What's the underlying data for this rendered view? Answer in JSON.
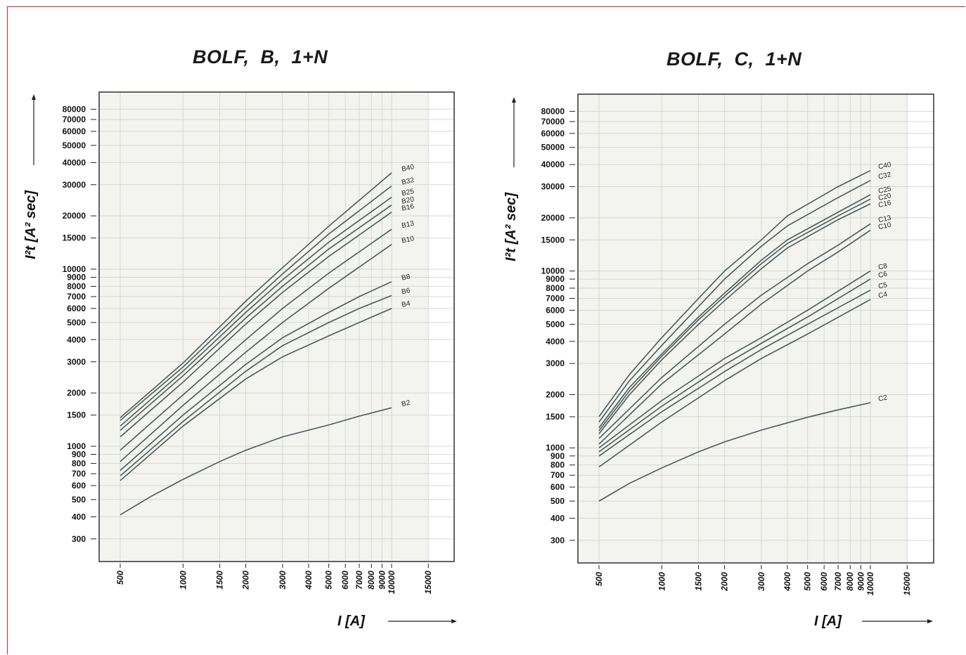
{
  "chart_data": [
    {
      "type": "line",
      "title": "BOLF,  B,  1+N",
      "xlabel": "I [A]",
      "ylabel": "I²t [A² sec]",
      "xscale": "log",
      "yscale": "log",
      "xlim": [
        420,
        17000
      ],
      "ylim": [
        215,
        130000
      ],
      "grid": true,
      "x_ticks": [
        500,
        1000,
        1500,
        2000,
        3000,
        4000,
        5000,
        6000,
        7000,
        8000,
        9000,
        10000,
        15000
      ],
      "x_tick_labels": [
        "500",
        "1000",
        "1500",
        "2000",
        "3000",
        "4000",
        "5000",
        "6000",
        "7000",
        "8000",
        "9000",
        "10000",
        "15000"
      ],
      "y_ticks": [
        300,
        400,
        500,
        600,
        700,
        800,
        900,
        1000,
        1500,
        2000,
        3000,
        4000,
        5000,
        6000,
        7000,
        8000,
        9000,
        10000,
        15000,
        20000,
        30000,
        40000,
        50000,
        60000,
        70000,
        80000
      ],
      "y_tick_labels": [
        "300",
        "400",
        "500",
        "600",
        "700",
        "800",
        "900",
        "1000",
        "1500",
        "2000",
        "3000",
        "4000",
        "5000",
        "6000",
        "7000",
        "8000",
        "9000",
        "10000",
        "15000",
        "20000",
        "30000",
        "40000",
        "50000",
        "60000",
        "70000",
        "80000"
      ],
      "series": [
        {
          "name": "B40",
          "x": [
            500,
            1000,
            2000,
            3000,
            5000,
            10000
          ],
          "y": [
            1450,
            2950,
            6600,
            10200,
            17500,
            35000
          ]
        },
        {
          "name": "B32",
          "x": [
            500,
            1000,
            2000,
            3000,
            5000,
            10000
          ],
          "y": [
            1400,
            2800,
            6100,
            9400,
            15800,
            29500
          ]
        },
        {
          "name": "B25",
          "x": [
            500,
            1000,
            2000,
            3000,
            5000,
            10000
          ],
          "y": [
            1300,
            2650,
            5700,
            8700,
            14200,
            25500
          ]
        },
        {
          "name": "B20",
          "x": [
            500,
            1000,
            2000,
            3000,
            5000,
            10000
          ],
          "y": [
            1230,
            2500,
            5300,
            8000,
            13000,
            23000
          ]
        },
        {
          "name": "B16",
          "x": [
            500,
            1000,
            2000,
            3000,
            5000,
            10000
          ],
          "y": [
            1130,
            2300,
            4900,
            7400,
            11800,
            21000
          ]
        },
        {
          "name": "B13",
          "x": [
            500,
            1000,
            2000,
            3000,
            5000,
            10000
          ],
          "y": [
            950,
            1950,
            4000,
            6000,
            9500,
            16800
          ]
        },
        {
          "name": "B10",
          "x": [
            500,
            1000,
            2000,
            3000,
            5000,
            10000
          ],
          "y": [
            820,
            1700,
            3400,
            5000,
            7800,
            13800
          ]
        },
        {
          "name": "B8",
          "x": [
            500,
            1000,
            2000,
            3000,
            5000,
            7000,
            10000
          ],
          "y": [
            730,
            1500,
            2900,
            4100,
            5700,
            7000,
            8500
          ]
        },
        {
          "name": "B6",
          "x": [
            500,
            1000,
            2000,
            3000,
            5000,
            7000,
            10000
          ],
          "y": [
            680,
            1380,
            2650,
            3700,
            5000,
            6000,
            7100
          ]
        },
        {
          "name": "B4",
          "x": [
            500,
            1000,
            2000,
            3000,
            5000,
            7000,
            10000
          ],
          "y": [
            640,
            1300,
            2400,
            3200,
            4200,
            5000,
            6000
          ]
        },
        {
          "name": "B2",
          "x": [
            500,
            700,
            1000,
            1500,
            2000,
            3000,
            5000,
            7000,
            10000
          ],
          "y": [
            410,
            520,
            650,
            820,
            950,
            1130,
            1320,
            1480,
            1650
          ]
        }
      ]
    },
    {
      "type": "line",
      "title": "BOLF,  C,  1+N",
      "xlabel": "I [A]",
      "ylabel": "I²t [A² sec]",
      "xscale": "log",
      "yscale": "log",
      "xlim": [
        420,
        17000
      ],
      "ylim": [
        215,
        130000
      ],
      "grid": true,
      "x_ticks": [
        500,
        1000,
        1500,
        2000,
        3000,
        4000,
        5000,
        6000,
        7000,
        8000,
        9000,
        10000,
        15000
      ],
      "x_tick_labels": [
        "500",
        "1000",
        "1500",
        "2000",
        "3000",
        "4000",
        "5000",
        "6000",
        "7000",
        "8000",
        "9000",
        "10000",
        "15000"
      ],
      "y_ticks": [
        300,
        400,
        500,
        600,
        700,
        800,
        900,
        1000,
        1500,
        2000,
        3000,
        4000,
        5000,
        6000,
        7000,
        8000,
        9000,
        10000,
        15000,
        20000,
        30000,
        40000,
        50000,
        60000,
        70000,
        80000
      ],
      "y_tick_labels": [
        "300",
        "400",
        "500",
        "600",
        "700",
        "800",
        "900",
        "1000",
        "1500",
        "2000",
        "3000",
        "4000",
        "5000",
        "6000",
        "7000",
        "8000",
        "9000",
        "10000",
        "15000",
        "20000",
        "30000",
        "40000",
        "50000",
        "60000",
        "70000",
        "80000"
      ],
      "series": [
        {
          "name": "C40",
          "x": [
            500,
            700,
            1000,
            1500,
            2000,
            3000,
            4000,
            7000,
            10000
          ],
          "y": [
            1500,
            2600,
            4200,
            7000,
            10000,
            15000,
            20500,
            30000,
            37000
          ]
        },
        {
          "name": "C32",
          "x": [
            500,
            700,
            1000,
            1500,
            2000,
            3000,
            4000,
            7000,
            10000
          ],
          "y": [
            1400,
            2400,
            3800,
            6300,
            9000,
            13800,
            18000,
            26000,
            32500
          ]
        },
        {
          "name": "C25",
          "x": [
            500,
            700,
            1000,
            1500,
            2000,
            3000,
            4000,
            7000,
            10000
          ],
          "y": [
            1300,
            2200,
            3400,
            5500,
            7500,
            11500,
            15000,
            21500,
            27000
          ]
        },
        {
          "name": "C20",
          "x": [
            500,
            700,
            1000,
            1500,
            2000,
            3000,
            4000,
            7000,
            10000
          ],
          "y": [
            1250,
            2100,
            3300,
            5300,
            7200,
            11000,
            14300,
            20500,
            25500
          ]
        },
        {
          "name": "C16",
          "x": [
            500,
            700,
            1000,
            1500,
            2000,
            3000,
            4000,
            7000,
            10000
          ],
          "y": [
            1200,
            2000,
            3150,
            5000,
            6800,
            10300,
            13500,
            19500,
            24000
          ]
        },
        {
          "name": "C13",
          "x": [
            500,
            1000,
            2000,
            3000,
            5000,
            7000,
            10000
          ],
          "y": [
            1130,
            2500,
            5000,
            7300,
            11000,
            14000,
            18500
          ]
        },
        {
          "name": "C10",
          "x": [
            500,
            1000,
            2000,
            3000,
            5000,
            7000,
            10000
          ],
          "y": [
            1050,
            2300,
            4400,
            6500,
            10000,
            12800,
            17000
          ]
        },
        {
          "name": "C8",
          "x": [
            500,
            1000,
            2000,
            3000,
            5000,
            10000
          ],
          "y": [
            1000,
            1850,
            3200,
            4200,
            6000,
            10000
          ]
        },
        {
          "name": "C6",
          "x": [
            500,
            1000,
            2000,
            3000,
            5000,
            10000
          ],
          "y": [
            950,
            1720,
            2950,
            3900,
            5500,
            9000
          ]
        },
        {
          "name": "C5",
          "x": [
            500,
            1000,
            2000,
            3000,
            5000,
            10000
          ],
          "y": [
            900,
            1600,
            2700,
            3600,
            5000,
            7800
          ]
        },
        {
          "name": "C4",
          "x": [
            500,
            1000,
            2000,
            3000,
            5000,
            10000
          ],
          "y": [
            780,
            1400,
            2400,
            3200,
            4400,
            6900
          ]
        },
        {
          "name": "C2",
          "x": [
            500,
            700,
            1000,
            1500,
            2000,
            3000,
            5000,
            7000,
            10000
          ],
          "y": [
            500,
            630,
            770,
            950,
            1080,
            1260,
            1490,
            1640,
            1800
          ]
        }
      ]
    }
  ]
}
